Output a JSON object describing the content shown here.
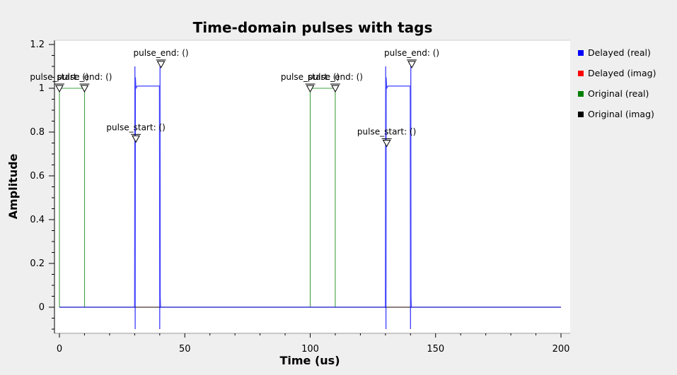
{
  "chart_data": {
    "type": "line",
    "title": "Time-domain pulses with tags",
    "xlabel": "Time (us)",
    "ylabel": "Amplitude",
    "xlim": [
      -1,
      201
    ],
    "ylim": [
      -0.12,
      1.22
    ],
    "xticks": [
      0,
      50,
      100,
      150,
      200
    ],
    "xtick_labels": [
      "0",
      "50",
      "100",
      "150",
      "200"
    ],
    "yticks": [
      0,
      0.2,
      0.4,
      0.6,
      0.8,
      1.0,
      1.2
    ],
    "ytick_labels": [
      "0",
      "0.2",
      "0.4",
      "0.6",
      "0.8",
      "1",
      "1.2"
    ],
    "legend_position": "right",
    "series": [
      {
        "name": "Delayed (real)",
        "color": "#0000ff",
        "x": [
          0,
          30,
          30.1,
          30.2,
          30.3,
          30.5,
          31,
          39.9,
          40,
          40.1,
          40.2,
          40.3,
          41,
          100,
          130,
          130.1,
          130.2,
          130.3,
          130.5,
          131,
          139.9,
          140,
          140.1,
          140.2,
          140.3,
          141,
          200
        ],
        "y": [
          0,
          0,
          1.1,
          -0.1,
          1.05,
          1.0,
          1.01,
          1.01,
          -0.1,
          1.1,
          0.05,
          0.0,
          0,
          0,
          0,
          1.1,
          -0.1,
          1.05,
          1.0,
          1.01,
          1.01,
          -0.1,
          1.1,
          0.05,
          0.0,
          0,
          0
        ]
      },
      {
        "name": "Delayed (imag)",
        "color": "#ff0000",
        "x": [
          0,
          200
        ],
        "y": [
          0,
          0
        ]
      },
      {
        "name": "Original (real)",
        "color": "#008000",
        "x": [
          0,
          0,
          10,
          10,
          100,
          100,
          110,
          110,
          200
        ],
        "y": [
          0,
          1,
          1,
          0,
          0,
          1,
          1,
          0,
          0
        ]
      },
      {
        "name": "Original (imag)",
        "color": "#000000",
        "x": [
          0,
          200
        ],
        "y": [
          0,
          0
        ]
      }
    ],
    "tags": [
      {
        "x": 0,
        "y": 1.0,
        "label": "pulse_start: ()"
      },
      {
        "x": 10,
        "y": 1.0,
        "label": "pulse_end: ()"
      },
      {
        "x": 30.5,
        "y": 0.77,
        "label": "pulse_start: ()"
      },
      {
        "x": 40.5,
        "y": 1.11,
        "label": "pulse_end: ()"
      },
      {
        "x": 100,
        "y": 1.0,
        "label": "pulse_start: ()"
      },
      {
        "x": 110,
        "y": 1.0,
        "label": "pulse_end: ()"
      },
      {
        "x": 130.5,
        "y": 0.75,
        "label": "pulse_start: ()"
      },
      {
        "x": 140.5,
        "y": 1.11,
        "label": "pulse_end: ()"
      }
    ]
  }
}
